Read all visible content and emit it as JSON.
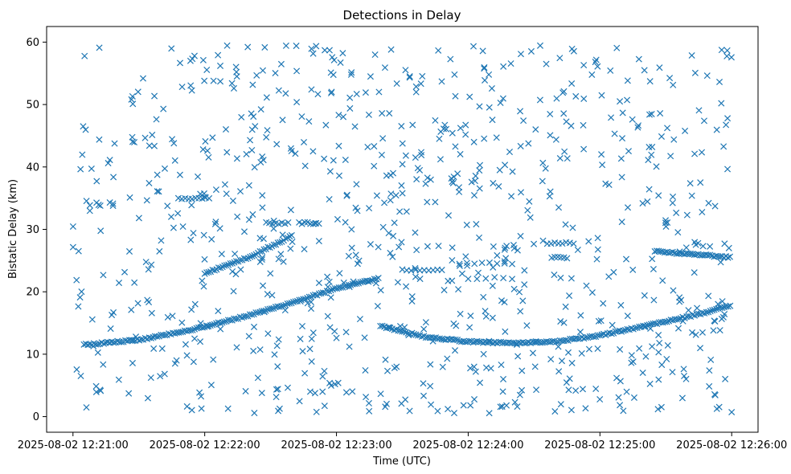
{
  "chart_data": {
    "type": "scatter",
    "title": "Detections in Delay",
    "xlabel": "Time (UTC)",
    "ylabel": "Bistatic Delay (km)",
    "marker": "x",
    "color": "#1f77b4",
    "grid": false,
    "xlim_seconds": [
      -12,
      312
    ],
    "ylim": [
      -2.5,
      62.5
    ],
    "x_ticks": [
      {
        "seconds": 0,
        "label": "2025-08-02 12:21:00"
      },
      {
        "seconds": 60,
        "label": "2025-08-02 12:22:00"
      },
      {
        "seconds": 120,
        "label": "2025-08-02 12:23:00"
      },
      {
        "seconds": 180,
        "label": "2025-08-02 12:24:00"
      },
      {
        "seconds": 240,
        "label": "2025-08-02 12:25:00"
      },
      {
        "seconds": 300,
        "label": "2025-08-02 12:26:00"
      }
    ],
    "y_ticks": [
      0,
      10,
      20,
      30,
      40,
      50,
      60
    ],
    "tracks": [
      {
        "name": "track-a",
        "t_start": 5,
        "t_end": 140,
        "points": [
          [
            5,
            11.5
          ],
          [
            30,
            12.3
          ],
          [
            55,
            14.0
          ],
          [
            80,
            16.2
          ],
          [
            100,
            18.3
          ],
          [
            120,
            20.5
          ],
          [
            140,
            22.2
          ]
        ]
      },
      {
        "name": "track-b",
        "t_start": 140,
        "t_end": 300,
        "points": [
          [
            140,
            14.5
          ],
          [
            160,
            12.8
          ],
          [
            180,
            12.0
          ],
          [
            200,
            11.8
          ],
          [
            220,
            12.0
          ],
          [
            240,
            13.0
          ],
          [
            260,
            14.5
          ],
          [
            280,
            16.0
          ],
          [
            300,
            17.8
          ]
        ]
      },
      {
        "name": "track-c",
        "t_start": 60,
        "t_end": 100,
        "points": [
          [
            60,
            23.0
          ],
          [
            80,
            25.5
          ],
          [
            100,
            29.0
          ]
        ]
      },
      {
        "name": "track-d",
        "t_start": 265,
        "t_end": 300,
        "points": [
          [
            265,
            26.5
          ],
          [
            300,
            25.5
          ]
        ]
      }
    ],
    "clutter": {
      "count": 850,
      "t_range": [
        0,
        300
      ],
      "y_range": [
        0.5,
        59.5
      ]
    },
    "clusters": [
      {
        "t_range": [
          48,
          62
        ],
        "y": 35,
        "count": 10
      },
      {
        "t_range": [
          88,
          98
        ],
        "y": 31,
        "count": 8
      },
      {
        "t_range": [
          103,
          112
        ],
        "y": 31,
        "count": 8
      },
      {
        "t_range": [
          216,
          228
        ],
        "y": 27.8,
        "count": 8
      },
      {
        "t_range": [
          218,
          225
        ],
        "y": 25.5,
        "count": 6
      },
      {
        "t_range": [
          150,
          168
        ],
        "y": 23.5,
        "count": 10
      },
      {
        "t_range": [
          176,
          200
        ],
        "y": 24.6,
        "count": 8
      },
      {
        "t_range": [
          180,
          200
        ],
        "y": 22.2,
        "count": 6
      }
    ]
  }
}
